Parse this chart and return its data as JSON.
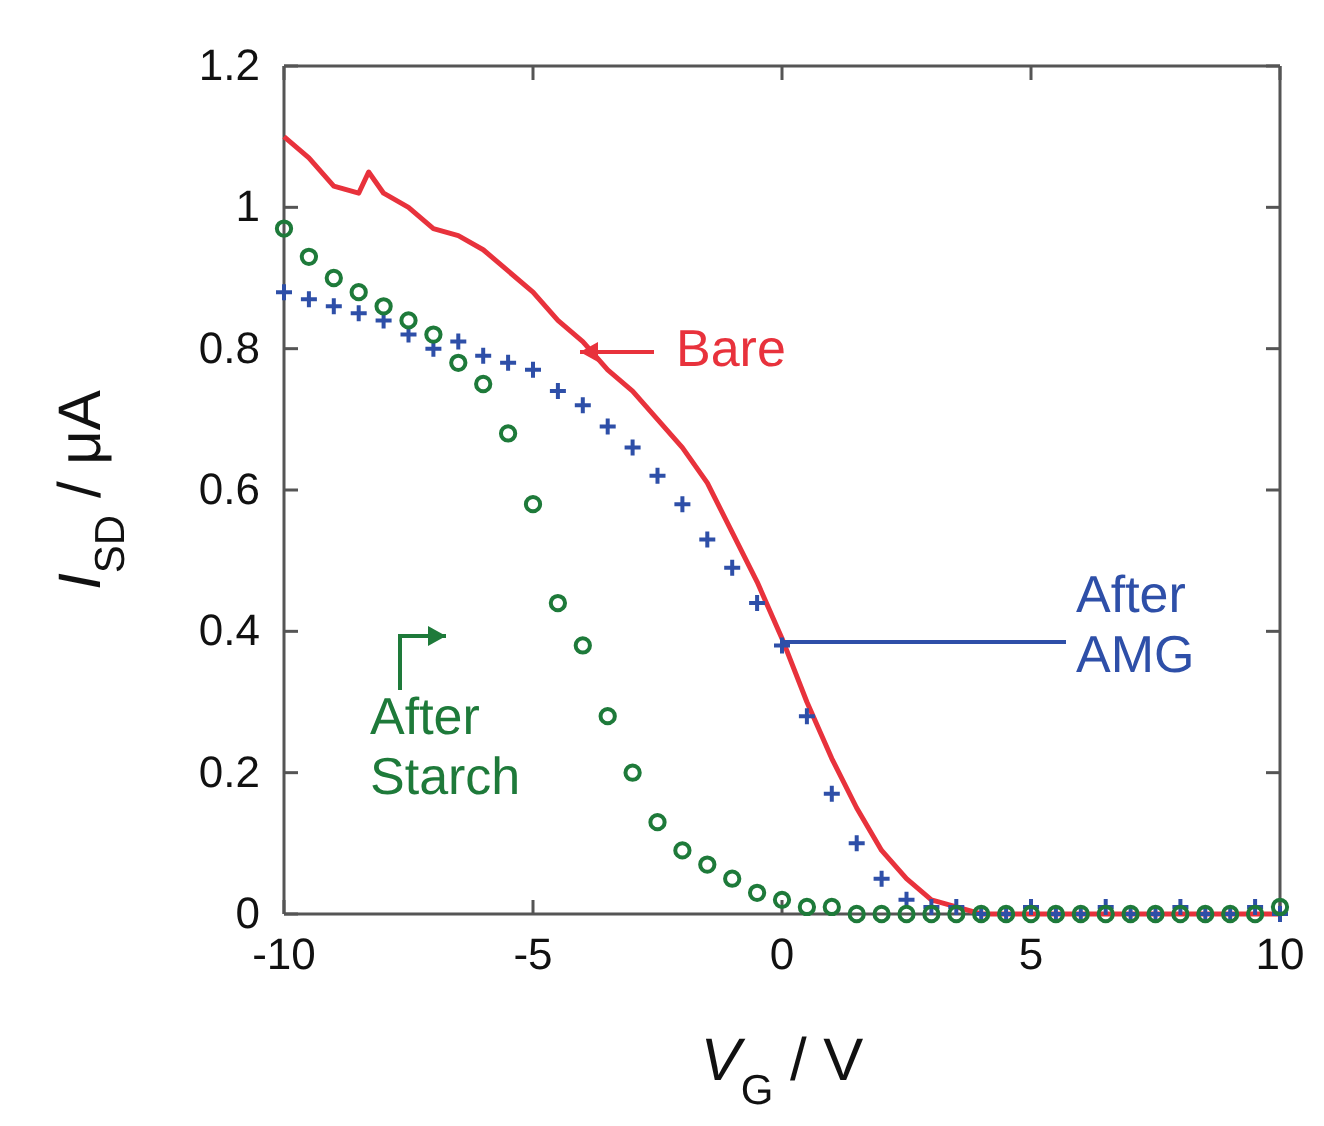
{
  "chart_data": {
    "type": "scatter",
    "xlabel": "V$_{G}$ / V",
    "ylabel": "I$_{SD}$ / μA",
    "xlim": [
      -10,
      10
    ],
    "xticks": [
      -10,
      -5,
      0,
      5,
      10
    ],
    "ylim": [
      0,
      1.2
    ],
    "yticks": [
      0,
      0.2,
      0.4,
      0.6,
      0.8,
      1,
      1.2
    ],
    "grid": false,
    "series": [
      {
        "name": "Bare",
        "type": "line",
        "color": "#e8323c",
        "line_style": "solid",
        "marker": "none",
        "x": [
          -10,
          -9.5,
          -9,
          -8.5,
          -8.3,
          -8,
          -7.5,
          -7,
          -6.5,
          -6,
          -5.5,
          -5,
          -4.5,
          -4,
          -3.5,
          -3,
          -2.5,
          -2,
          -1.5,
          -1,
          -0.5,
          0,
          0.5,
          1,
          1.5,
          2,
          2.5,
          3,
          3.5,
          4,
          10
        ],
        "values": [
          1.1,
          1.07,
          1.03,
          1.02,
          1.05,
          1.02,
          1.0,
          0.97,
          0.96,
          0.94,
          0.91,
          0.88,
          0.84,
          0.81,
          0.77,
          0.74,
          0.7,
          0.66,
          0.61,
          0.54,
          0.47,
          0.39,
          0.3,
          0.22,
          0.15,
          0.09,
          0.05,
          0.02,
          0.01,
          0,
          0
        ]
      },
      {
        "name": "After AMG",
        "color": "#2e4fa8",
        "marker": "cross",
        "x": [
          -10,
          -9.5,
          -9,
          -8.5,
          -8,
          -7.5,
          -7,
          -6.5,
          -6,
          -5.5,
          -5,
          -4.5,
          -4,
          -3.5,
          -3,
          -2.5,
          -2,
          -1.5,
          -1,
          -0.5,
          0,
          0.5,
          1,
          1.5,
          2,
          2.5,
          3,
          3.5,
          4,
          4.5,
          5,
          5.5,
          6,
          6.5,
          7,
          7.5,
          8,
          8.5,
          9,
          9.5,
          10
        ],
        "values": [
          0.88,
          0.87,
          0.86,
          0.85,
          0.84,
          0.82,
          0.8,
          0.81,
          0.79,
          0.78,
          0.77,
          0.74,
          0.72,
          0.69,
          0.66,
          0.62,
          0.58,
          0.53,
          0.49,
          0.44,
          0.38,
          0.28,
          0.17,
          0.1,
          0.05,
          0.02,
          0.01,
          0.01,
          0,
          0,
          0.01,
          0,
          0,
          0.01,
          0,
          0,
          0.01,
          0,
          0,
          0.01,
          0
        ]
      },
      {
        "name": "After Starch",
        "color": "#1e7a3a",
        "marker": "circle",
        "x": [
          -10,
          -9.5,
          -9,
          -8.5,
          -8,
          -7.5,
          -7,
          -6.5,
          -6,
          -5.5,
          -5,
          -4.5,
          -4,
          -3.5,
          -3,
          -2.5,
          -2,
          -1.5,
          -1,
          -0.5,
          0,
          0.5,
          1,
          1.5,
          2,
          2.5,
          3,
          3.5,
          4,
          4.5,
          5,
          5.5,
          6,
          6.5,
          7,
          7.5,
          8,
          8.5,
          9,
          9.5,
          10
        ],
        "values": [
          0.97,
          0.93,
          0.9,
          0.88,
          0.86,
          0.84,
          0.82,
          0.78,
          0.75,
          0.68,
          0.58,
          0.44,
          0.38,
          0.28,
          0.2,
          0.13,
          0.09,
          0.07,
          0.05,
          0.03,
          0.02,
          0.01,
          0.01,
          0,
          0,
          0,
          0,
          0,
          0,
          0,
          0,
          0,
          0,
          0,
          0,
          0,
          0,
          0,
          0,
          0,
          0.01
        ]
      }
    ]
  }
}
